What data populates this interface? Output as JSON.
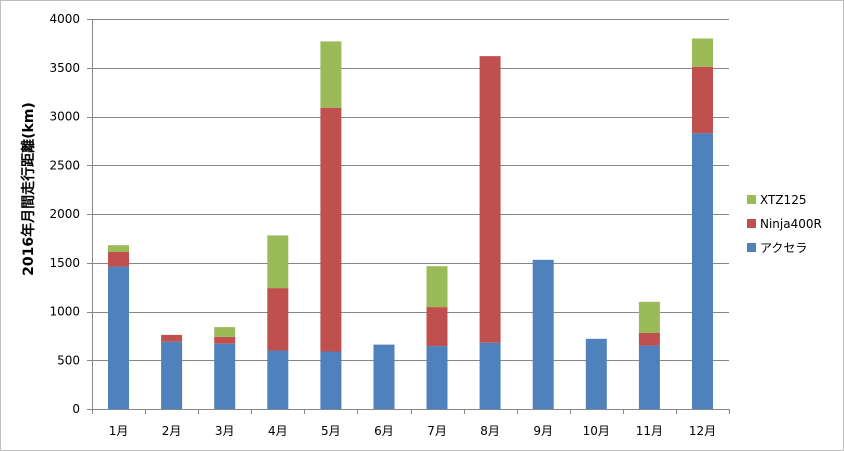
{
  "chart_data": {
    "type": "bar",
    "stacked": true,
    "categories": [
      "1月",
      "2月",
      "3月",
      "4月",
      "5月",
      "6月",
      "7月",
      "8月",
      "9月",
      "10月",
      "11月",
      "12月"
    ],
    "series": [
      {
        "name": "アクセラ",
        "color": "#4F81BD",
        "values": [
          1460,
          690,
          670,
          600,
          590,
          660,
          645,
          680,
          1530,
          720,
          650,
          2830
        ]
      },
      {
        "name": "Ninja400R",
        "color": "#C0504D",
        "values": [
          150,
          70,
          70,
          640,
          2500,
          0,
          400,
          2940,
          0,
          0,
          130,
          680
        ]
      },
      {
        "name": "XTZ125",
        "color": "#9BBB59",
        "values": [
          70,
          0,
          100,
          540,
          680,
          0,
          420,
          0,
          0,
          0,
          320,
          290
        ]
      }
    ],
    "xlabel": "",
    "ylabel": "2016年月間走行距離(km)",
    "ylim": [
      0,
      4000
    ],
    "yticks": [
      0,
      500,
      1000,
      1500,
      2000,
      2500,
      3000,
      3500,
      4000
    ],
    "grid": true,
    "legend": {
      "position": "right",
      "order": [
        "XTZ125",
        "Ninja400R",
        "アクセラ"
      ]
    }
  }
}
